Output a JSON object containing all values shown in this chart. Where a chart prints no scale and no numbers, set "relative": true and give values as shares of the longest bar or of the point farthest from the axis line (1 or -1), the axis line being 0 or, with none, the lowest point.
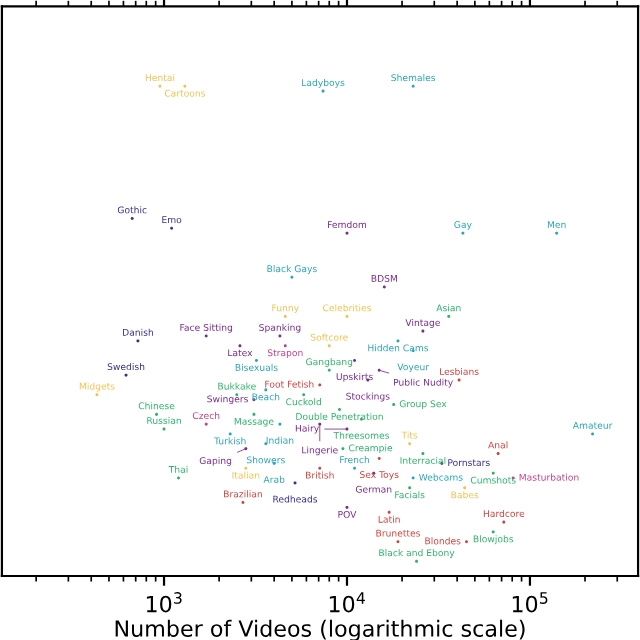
{
  "chart_data": {
    "type": "scatter",
    "relative": true,
    "xlabel": "Number of Videos (logarithmic scale)",
    "log": "x",
    "xlim": [
      130,
      390000
    ],
    "xticks": [
      {
        "value": 1000,
        "label": "10$^{3}$"
      },
      {
        "value": 10000,
        "label": "10$^{4}$"
      },
      {
        "value": 100000,
        "label": "10$^{5}$"
      }
    ],
    "marker": "circle",
    "grid": false,
    "legend": false,
    "x": [
      950,
      1300,
      7400,
      23000,
      670,
      1100,
      10000,
      43000,
      140000,
      5000,
      16000,
      4600,
      10000,
      36000,
      26000,
      19000,
      23000,
      1700,
      4300,
      2600,
      4600,
      3200,
      8000,
      720,
      620,
      430,
      8000,
      11000,
      15000,
      13000,
      41000,
      7100,
      5800,
      9100,
      18000,
      12000,
      3600,
      2500,
      3100,
      3100,
      4300,
      7100,
      910,
      1000,
      1700,
      2300,
      3600,
      2800,
      4000,
      2800,
      7100,
      5200,
      2700,
      1200,
      10000,
      9500,
      22000,
      26000,
      67000,
      220000,
      15000,
      33000,
      11000,
      14000,
      63000,
      81000,
      23000,
      22000,
      44000,
      17000,
      10000,
      72000,
      63000,
      45000,
      19000,
      24000
    ],
    "values": [
      1.0,
      1.0,
      0.99,
      1.0,
      0.73,
      0.71,
      0.7,
      0.7,
      0.7,
      0.61,
      0.59,
      0.53,
      0.53,
      0.53,
      0.5,
      0.48,
      0.46,
      0.49,
      0.49,
      0.47,
      0.47,
      0.44,
      0.47,
      0.48,
      0.41,
      0.37,
      0.42,
      0.44,
      0.42,
      0.4,
      0.4,
      0.39,
      0.37,
      0.34,
      0.35,
      0.32,
      0.38,
      0.37,
      0.36,
      0.33,
      0.31,
      0.31,
      0.33,
      0.3,
      0.31,
      0.29,
      0.27,
      0.26,
      0.23,
      0.22,
      0.22,
      0.19,
      0.15,
      0.2,
      0.3,
      0.26,
      0.27,
      0.25,
      0.25,
      0.29,
      0.24,
      0.23,
      0.22,
      0.21,
      0.21,
      0.2,
      0.2,
      0.18,
      0.18,
      0.13,
      0.14,
      0.11,
      0.09,
      0.07,
      0.07,
      0.03
    ],
    "colors": [
      "#f2c14e",
      "#f2c14e",
      "#2aa5b5",
      "#2aa5b5",
      "#3b2f8f",
      "#3b2f8f",
      "#7b2d8e",
      "#2aa5b5",
      "#2aa5b5",
      "#2aa5b5",
      "#7b2d8e",
      "#f2c14e",
      "#f2c14e",
      "#2db36b",
      "#7b2d8e",
      "#2aa5b5",
      "#2aa5b5",
      "#7b2d8e",
      "#7b2d8e",
      "#7b2d8e",
      "#c2418a",
      "#2aa5b5",
      "#f2c14e",
      "#3b2f8f",
      "#3b2f8f",
      "#f2c14e",
      "#2db36b",
      "#7b2d8e",
      "#7b2d8e",
      "#7b2d8e",
      "#d0433f",
      "#d0433f",
      "#2db36b",
      "#2db36b",
      "#2db36b",
      "#2db36b",
      "#2aa5b5",
      "#2db36b",
      "#7b2d8e",
      "#2db36b",
      "#2aa5b5",
      "#7b2d8e",
      "#2db36b",
      "#2db36b",
      "#c2418a",
      "#2aa5b5",
      "#2aa5b5",
      "#7b2d8e",
      "#2aa5b5",
      "#f2c14e",
      "#d0433f",
      "#3b2f8f",
      "#d0433f",
      "#2db36b",
      "#7b2d8e",
      "#2db36b",
      "#f2c14e",
      "#2db36b",
      "#d0433f",
      "#2aa5b5",
      "#d0433f",
      "#3b2f8f",
      "#2aa5b5",
      "#7b2d8e",
      "#2db36b",
      "#c2418a",
      "#2aa5b5",
      "#2db36b",
      "#f2c14e",
      "#d0433f",
      "#7b2d8e",
      "#d0433f",
      "#2db36b",
      "#d0433f",
      "#d0433f",
      "#2db36b"
    ],
    "annotations": [
      {
        "text": "Hentai",
        "x": 950,
        "y": 1.0
      },
      {
        "text": "Cartoons",
        "x": 1300,
        "y": 1.0
      },
      {
        "text": "Ladyboys",
        "x": 7400,
        "y": 0.99
      },
      {
        "text": "Shemales",
        "x": 23000,
        "y": 1.0
      },
      {
        "text": "Gothic",
        "x": 670,
        "y": 0.73
      },
      {
        "text": "Emo",
        "x": 1100,
        "y": 0.71
      },
      {
        "text": "Femdom",
        "x": 10000,
        "y": 0.7
      },
      {
        "text": "Gay",
        "x": 43000,
        "y": 0.7
      },
      {
        "text": "Men",
        "x": 140000,
        "y": 0.7
      },
      {
        "text": "Black Gays",
        "x": 5000,
        "y": 0.61
      },
      {
        "text": "BDSM",
        "x": 16000,
        "y": 0.59
      },
      {
        "text": "Funny",
        "x": 4600,
        "y": 0.53
      },
      {
        "text": "Celebrities",
        "x": 10000,
        "y": 0.53
      },
      {
        "text": "Asian",
        "x": 36000,
        "y": 0.53
      },
      {
        "text": "Vintage",
        "x": 26000,
        "y": 0.5
      },
      {
        "text": "Hidden Cams",
        "x": 19000,
        "y": 0.48
      },
      {
        "text": "Voyeur",
        "x": 23000,
        "y": 0.46
      },
      {
        "text": "Face Sitting",
        "x": 1700,
        "y": 0.49
      },
      {
        "text": "Spanking",
        "x": 4300,
        "y": 0.49
      },
      {
        "text": "Latex",
        "x": 2600,
        "y": 0.47
      },
      {
        "text": "Strapon",
        "x": 4600,
        "y": 0.47
      },
      {
        "text": "Bisexuals",
        "x": 3200,
        "y": 0.44
      },
      {
        "text": "Softcore",
        "x": 8000,
        "y": 0.47
      },
      {
        "text": "Danish",
        "x": 720,
        "y": 0.48
      },
      {
        "text": "Swedish",
        "x": 620,
        "y": 0.41
      },
      {
        "text": "Midgets",
        "x": 430,
        "y": 0.37
      },
      {
        "text": "Gangbang",
        "x": 8000,
        "y": 0.42
      },
      {
        "text": "Upskirts",
        "x": 11000,
        "y": 0.44
      },
      {
        "text": "Public Nudity",
        "x": 15000,
        "y": 0.42
      },
      {
        "text": "Stockings",
        "x": 13000,
        "y": 0.4
      },
      {
        "text": "Lesbians",
        "x": 41000,
        "y": 0.4
      },
      {
        "text": "Foot Fetish",
        "x": 7100,
        "y": 0.39
      },
      {
        "text": "Cuckold",
        "x": 5800,
        "y": 0.37
      },
      {
        "text": "Double Penetration",
        "x": 9100,
        "y": 0.34
      },
      {
        "text": "Group Sex",
        "x": 18000,
        "y": 0.35
      },
      {
        "text": "Threesomes",
        "x": 12000,
        "y": 0.32
      },
      {
        "text": "Beach",
        "x": 3600,
        "y": 0.38
      },
      {
        "text": "Bukkake",
        "x": 2500,
        "y": 0.37
      },
      {
        "text": "Swingers",
        "x": 3100,
        "y": 0.36
      },
      {
        "text": "Massage",
        "x": 3100,
        "y": 0.33
      },
      {
        "text": "Indian",
        "x": 4300,
        "y": 0.31
      },
      {
        "text": "Lingerie",
        "x": 7100,
        "y": 0.31
      },
      {
        "text": "Chinese",
        "x": 910,
        "y": 0.33
      },
      {
        "text": "Russian",
        "x": 1000,
        "y": 0.3
      },
      {
        "text": "Czech",
        "x": 1700,
        "y": 0.31
      },
      {
        "text": "Turkish",
        "x": 2300,
        "y": 0.29
      },
      {
        "text": "Showers",
        "x": 3600,
        "y": 0.27
      },
      {
        "text": "Gaping",
        "x": 2800,
        "y": 0.26
      },
      {
        "text": "Arab",
        "x": 4000,
        "y": 0.23
      },
      {
        "text": "Italian",
        "x": 2800,
        "y": 0.22
      },
      {
        "text": "British",
        "x": 7100,
        "y": 0.22
      },
      {
        "text": "Redheads",
        "x": 5200,
        "y": 0.19
      },
      {
        "text": "Brazilian",
        "x": 2700,
        "y": 0.15
      },
      {
        "text": "Thai",
        "x": 1200,
        "y": 0.2
      },
      {
        "text": "Hairy",
        "x": 10000,
        "y": 0.3
      },
      {
        "text": "Creampie",
        "x": 9500,
        "y": 0.26
      },
      {
        "text": "Tits",
        "x": 22000,
        "y": 0.27
      },
      {
        "text": "Interracial",
        "x": 26000,
        "y": 0.25
      },
      {
        "text": "Anal",
        "x": 67000,
        "y": 0.25
      },
      {
        "text": "Amateur",
        "x": 220000,
        "y": 0.29
      },
      {
        "text": "Sex Toys",
        "x": 15000,
        "y": 0.24
      },
      {
        "text": "Pornstars",
        "x": 33000,
        "y": 0.23
      },
      {
        "text": "French",
        "x": 11000,
        "y": 0.22
      },
      {
        "text": "German",
        "x": 14000,
        "y": 0.21
      },
      {
        "text": "Cumshots",
        "x": 63000,
        "y": 0.21
      },
      {
        "text": "Masturbation",
        "x": 81000,
        "y": 0.2
      },
      {
        "text": "Webcams",
        "x": 23000,
        "y": 0.2
      },
      {
        "text": "Facials",
        "x": 22000,
        "y": 0.18
      },
      {
        "text": "Babes",
        "x": 44000,
        "y": 0.18
      },
      {
        "text": "Latin",
        "x": 17000,
        "y": 0.13
      },
      {
        "text": "POV",
        "x": 10000,
        "y": 0.14
      },
      {
        "text": "Hardcore",
        "x": 72000,
        "y": 0.11
      },
      {
        "text": "Blowjobs",
        "x": 63000,
        "y": 0.09
      },
      {
        "text": "Blondes",
        "x": 45000,
        "y": 0.07
      },
      {
        "text": "Brunettes",
        "x": 19000,
        "y": 0.07
      },
      {
        "text": "Black and Ebony",
        "x": 24000,
        "y": 0.03
      }
    ]
  }
}
